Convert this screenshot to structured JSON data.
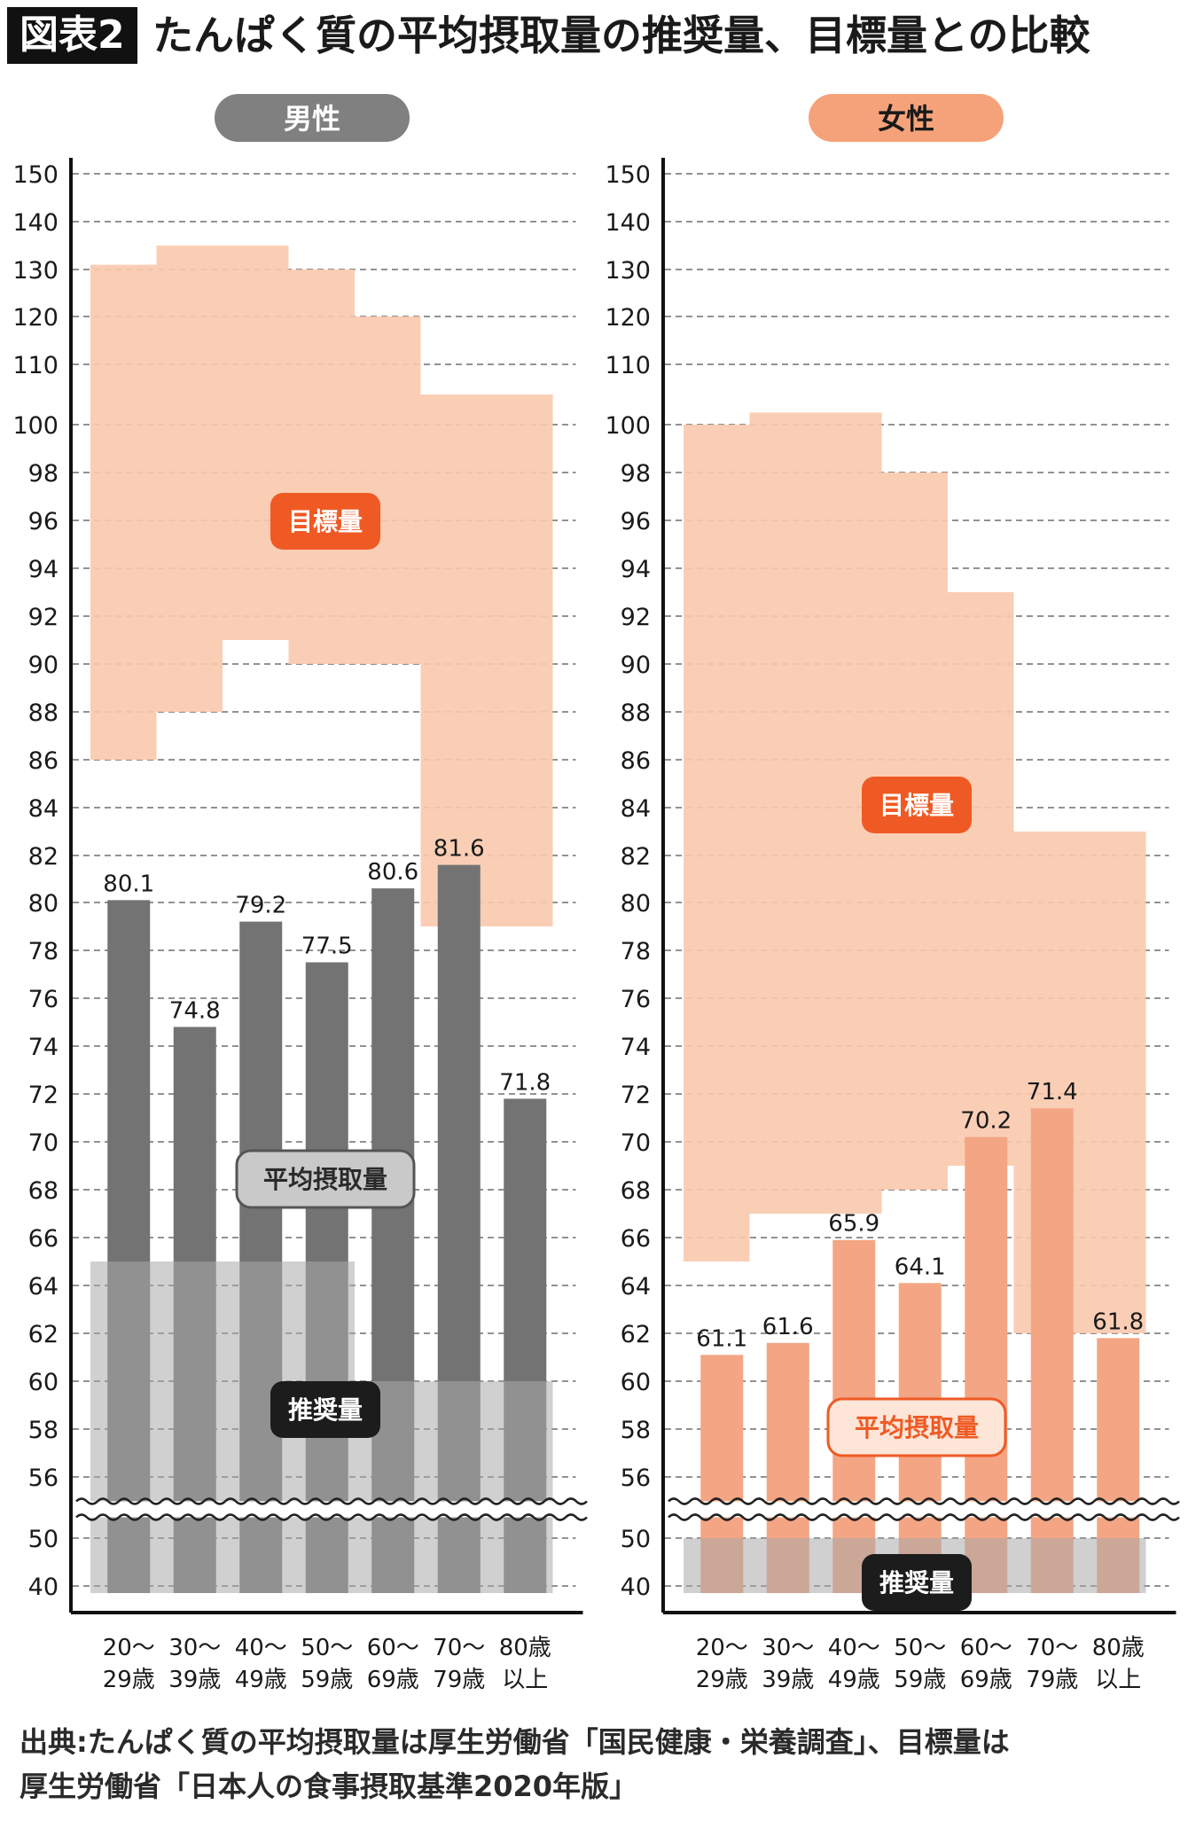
{
  "header": {
    "badge": "図表2",
    "title": "たんぱく質の平均摂取量の推奨量、目標量との比較"
  },
  "source": {
    "line1": "出典:たんぱく質の平均摂取量は厚生労働省「国民健康・栄養調査」、目標量は",
    "line2": "厚生労働省「日本人の食事摂取基準2020年版」"
  },
  "colors": {
    "male_pill": "#808080",
    "female_pill": "#f5a27a",
    "target_band": "#f9c9ad",
    "male_bar": "#737373",
    "female_bar": "#f3a584",
    "recommended_band": "#a9a9a9",
    "tag_target": "#ef5a24",
    "tag_recommended": "#1c1c1c"
  },
  "chart_data": [
    {
      "type": "bar",
      "panel_label": "男性",
      "categories": [
        "20〜\n29歳",
        "30〜\n39歳",
        "40〜\n49歳",
        "50〜\n59歳",
        "60〜\n69歳",
        "70〜\n79歳",
        "80歳\n以上"
      ],
      "y_ticks": [
        "150",
        "140",
        "130",
        "120",
        "110",
        "100",
        "98",
        "96",
        "94",
        "92",
        "90",
        "88",
        "86",
        "84",
        "82",
        "80",
        "78",
        "76",
        "74",
        "72",
        "70",
        "68",
        "66",
        "64",
        "62",
        "60",
        "58",
        "56",
        "50",
        "40"
      ],
      "axis_note": "non-linear y axis with break between 56 and 50",
      "series": [
        {
          "name": "平均摂取量",
          "values": [
            80.1,
            74.8,
            79.2,
            77.5,
            80.6,
            81.6,
            71.8
          ],
          "labels": [
            "80.1",
            "74.8",
            "79.2",
            "77.5",
            "80.6",
            "81.6",
            "71.8"
          ]
        },
        {
          "name": "目標量",
          "range_low": [
            86,
            88,
            91,
            90,
            90,
            79,
            79
          ],
          "range_high": [
            131,
            135,
            135,
            130,
            120,
            105,
            105
          ]
        },
        {
          "name": "推奨量",
          "values": [
            65,
            65,
            65,
            65,
            60,
            60,
            60
          ]
        }
      ],
      "tags": {
        "target": "目標量",
        "average": "平均摂取量",
        "recommended": "推奨量"
      },
      "grid": true
    },
    {
      "type": "bar",
      "panel_label": "女性",
      "categories": [
        "20〜\n29歳",
        "30〜\n39歳",
        "40〜\n49歳",
        "50〜\n59歳",
        "60〜\n69歳",
        "70〜\n79歳",
        "80歳\n以上"
      ],
      "y_ticks": [
        "150",
        "140",
        "130",
        "120",
        "110",
        "100",
        "98",
        "96",
        "94",
        "92",
        "90",
        "88",
        "86",
        "84",
        "82",
        "80",
        "78",
        "76",
        "74",
        "72",
        "70",
        "68",
        "66",
        "64",
        "62",
        "60",
        "58",
        "56",
        "50",
        "40"
      ],
      "axis_note": "non-linear y axis with break between 56 and 50",
      "series": [
        {
          "name": "平均摂取量",
          "values": [
            61.1,
            61.6,
            65.9,
            64.1,
            70.2,
            71.4,
            61.8
          ],
          "labels": [
            "61.1",
            "61.6",
            "65.9",
            "64.1",
            "70.2",
            "71.4",
            "61.8"
          ]
        },
        {
          "name": "目標量",
          "range_low": [
            65,
            67,
            67,
            68,
            69,
            62,
            62
          ],
          "range_high": [
            100,
            102,
            102,
            98,
            93,
            83,
            83
          ]
        },
        {
          "name": "推奨量",
          "values": [
            50,
            50,
            50,
            50,
            50,
            50,
            50
          ]
        }
      ],
      "tags": {
        "target": "目標量",
        "average": "平均摂取量",
        "recommended": "推奨量"
      },
      "grid": true
    }
  ]
}
